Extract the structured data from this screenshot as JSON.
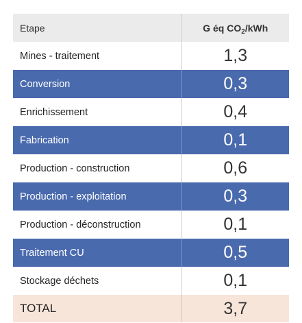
{
  "table": {
    "header": {
      "col1": "Etape",
      "col2_prefix": "G éq CO",
      "col2_sub": "2",
      "col2_suffix": "/kWh"
    },
    "rows": [
      {
        "label": "Mines - traitement",
        "value": "1,3",
        "style": "white"
      },
      {
        "label": "Conversion",
        "value": "0,3",
        "style": "blue"
      },
      {
        "label": "Enrichissement",
        "value": "0,4",
        "style": "white"
      },
      {
        "label": "Fabrication",
        "value": "0,1",
        "style": "blue"
      },
      {
        "label": "Production - construction",
        "value": "0,6",
        "style": "white"
      },
      {
        "label": "Production - exploitation",
        "value": "0,3",
        "style": "blue"
      },
      {
        "label": "Production - déconstruction",
        "value": "0,1",
        "style": "white"
      },
      {
        "label": "Traitement CU",
        "value": "0,5",
        "style": "blue"
      },
      {
        "label": "Stockage déchets",
        "value": "0,1",
        "style": "white"
      }
    ],
    "total": {
      "label": "TOTAL",
      "value": "3,7"
    }
  },
  "colors": {
    "header_bg": "#ebebeb",
    "blue_row": "#4a6aae",
    "total_bg": "#f8e5da"
  }
}
